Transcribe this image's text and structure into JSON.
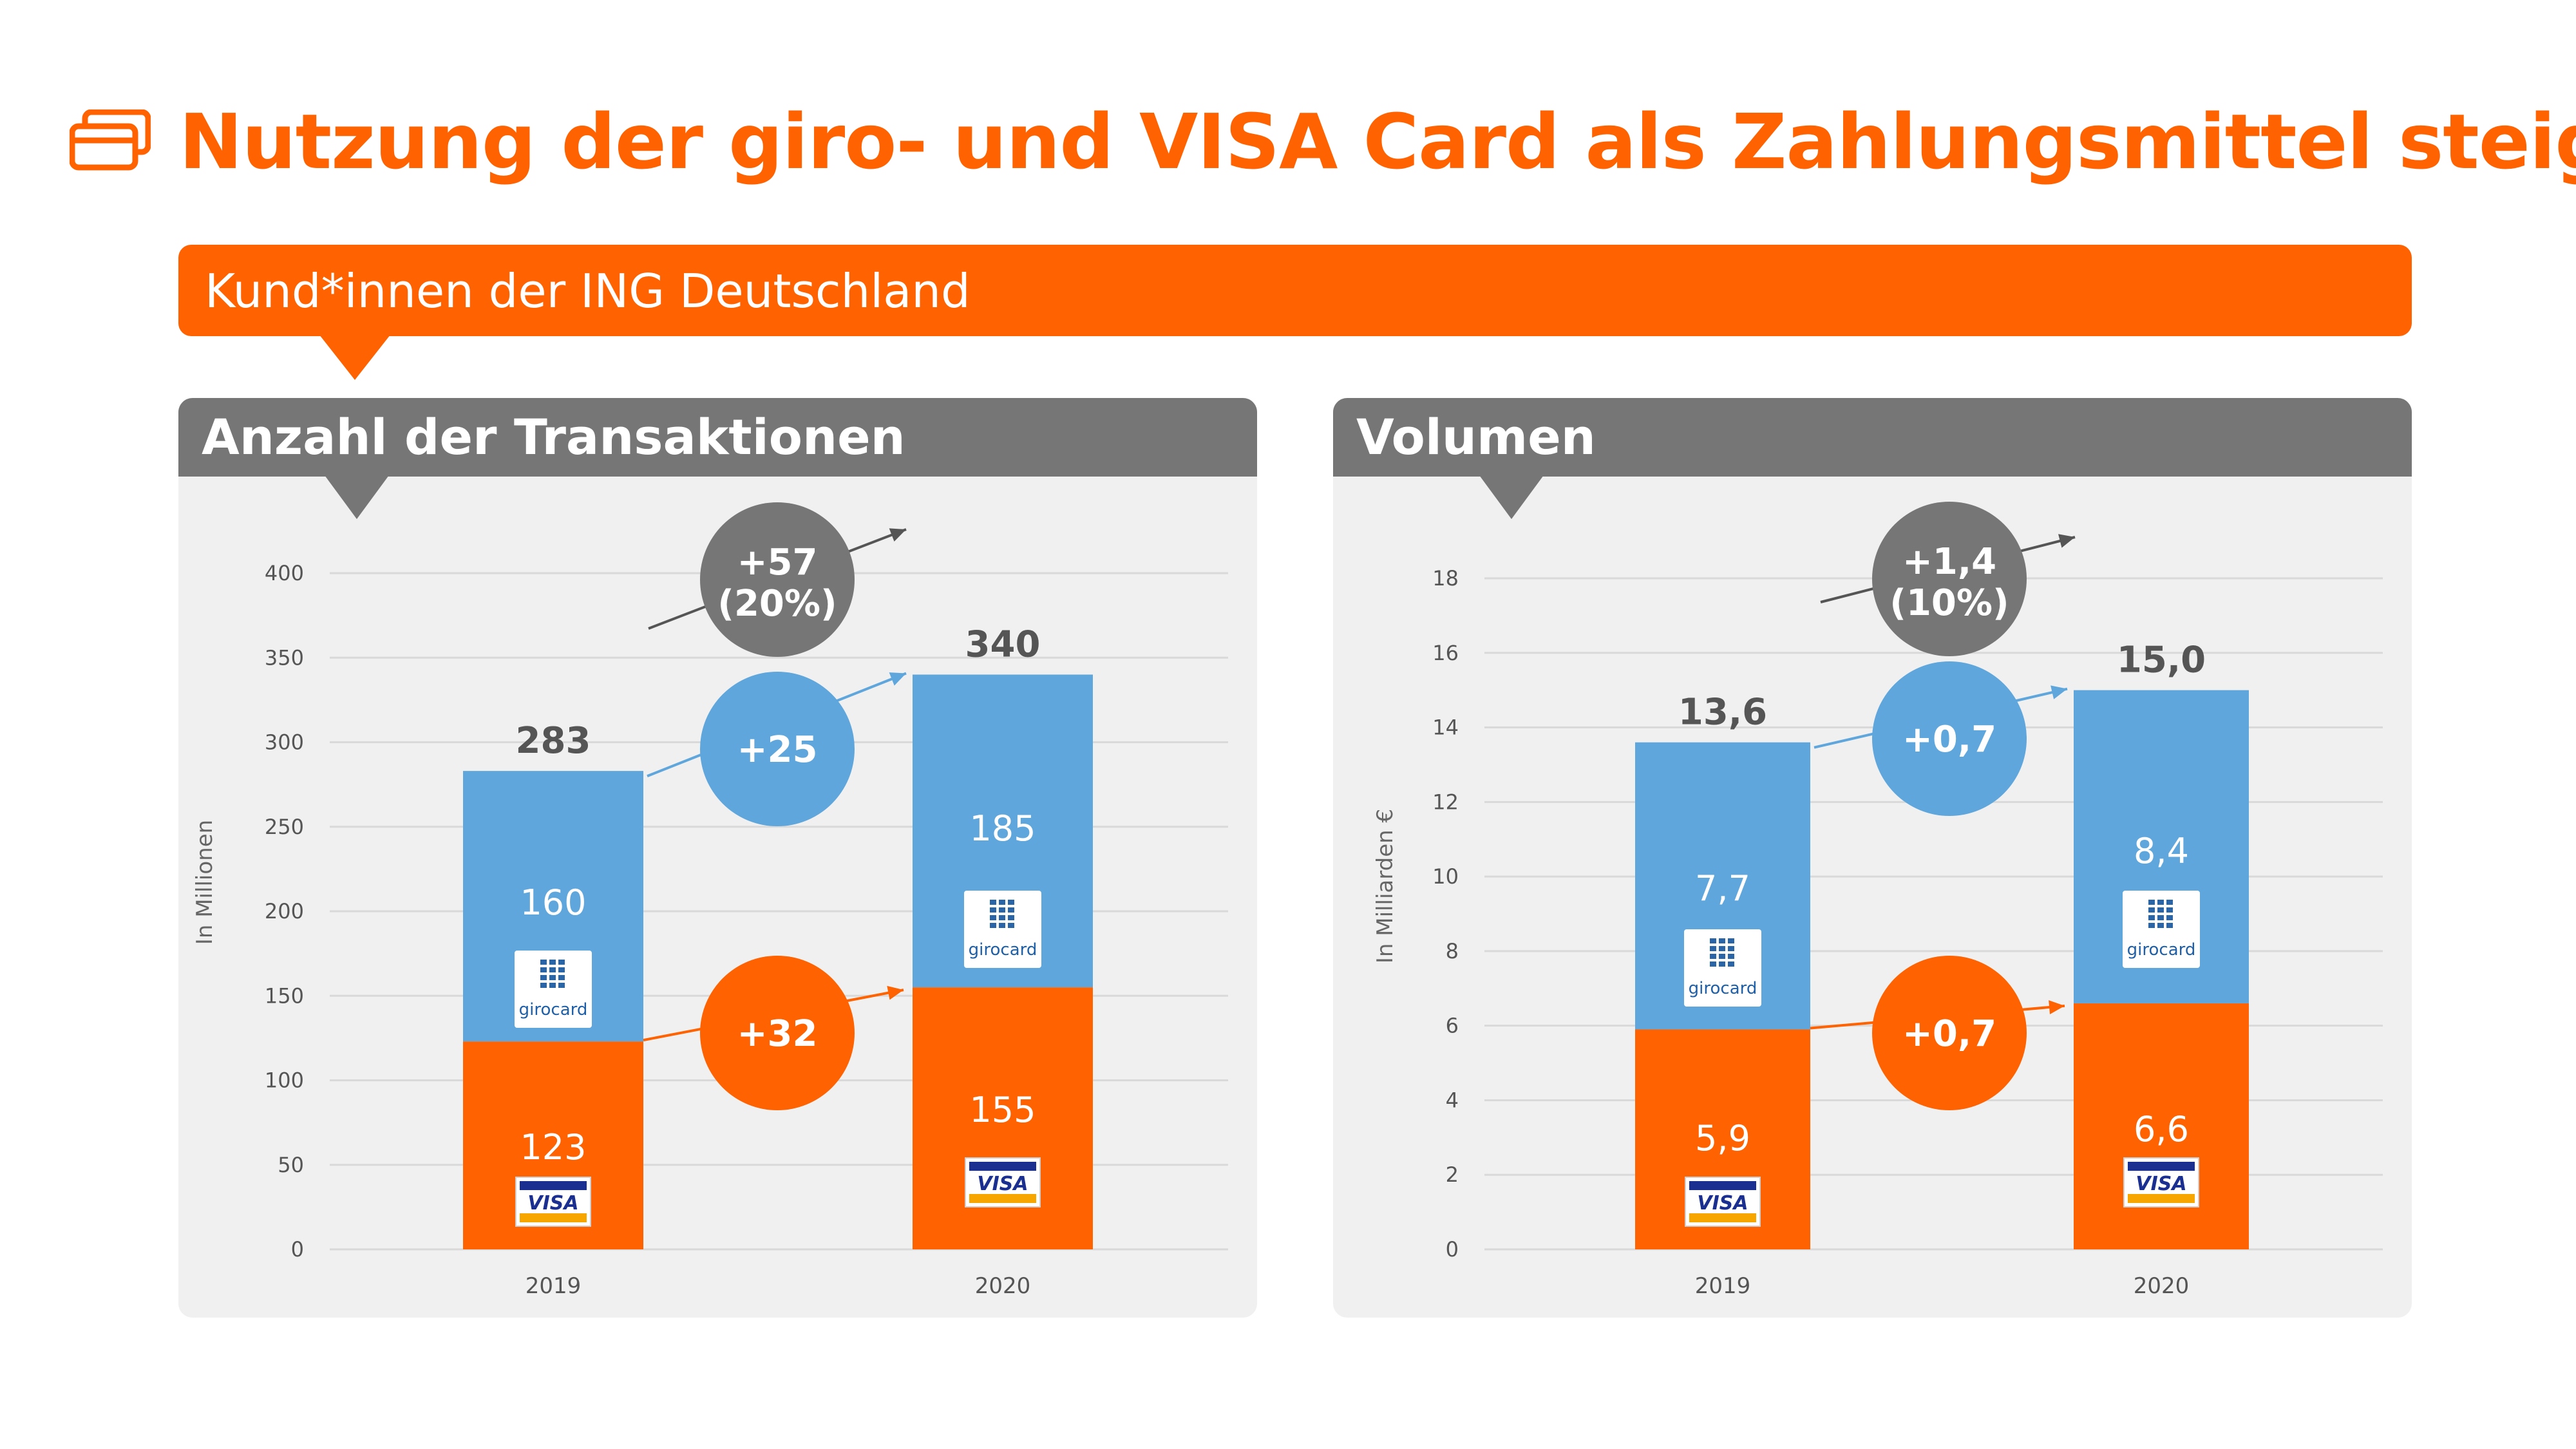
{
  "page": {
    "title": "Nutzung der giro- und VISA Card als Zahlungsmittel steigt",
    "banner": "Kund*innen der ING Deutschland",
    "icon": "cards-icon",
    "colors": {
      "accent": "#ff6200",
      "blue": "#5ea6dc",
      "gray": "#767676"
    }
  },
  "chart_data": [
    {
      "type": "bar",
      "stacked": true,
      "title": "Anzahl der Transaktionen",
      "ylabel": "In Millionen",
      "ylim": [
        0,
        400
      ],
      "yticks": [
        0,
        50,
        100,
        150,
        200,
        250,
        300,
        350,
        400
      ],
      "categories": [
        "2019",
        "2020"
      ],
      "series": [
        {
          "name": "VISA",
          "color": "#ff6200",
          "values": [
            123,
            155
          ],
          "labels": [
            "123",
            "155"
          ]
        },
        {
          "name": "girocard",
          "color": "#5ea6dc",
          "values": [
            160,
            185
          ],
          "labels": [
            "160",
            "185"
          ]
        }
      ],
      "totals": [
        "283",
        "340"
      ],
      "deltas": {
        "visa": "+32",
        "girocard": "+25",
        "total": "+57",
        "total_pct": "(20%)"
      }
    },
    {
      "type": "bar",
      "stacked": true,
      "title": "Volumen",
      "ylabel": "In Milliarden €",
      "ylim": [
        0,
        18
      ],
      "yticks": [
        0,
        2,
        4,
        6,
        8,
        10,
        12,
        14,
        16,
        18
      ],
      "categories": [
        "2019",
        "2020"
      ],
      "series": [
        {
          "name": "VISA",
          "color": "#ff6200",
          "values": [
            5.9,
            6.6
          ],
          "labels": [
            "5,9",
            "6,6"
          ]
        },
        {
          "name": "girocard",
          "color": "#5ea6dc",
          "values": [
            7.7,
            8.4
          ],
          "labels": [
            "7,7",
            "8,4"
          ]
        }
      ],
      "totals": [
        "13,6",
        "15,0"
      ],
      "deltas": {
        "visa": "+0,7",
        "girocard": "+0,7",
        "total": "+1,4",
        "total_pct": "(10%)"
      }
    }
  ]
}
